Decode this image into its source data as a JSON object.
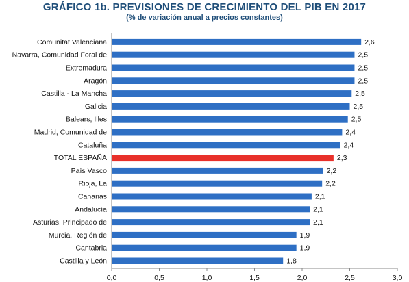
{
  "chart_data": {
    "type": "bar",
    "orientation": "horizontal",
    "title": "GRÁFICO 1b. PREVISIONES DE CRECIMIENTO DEL PIB EN 2017",
    "subtitle": "(% de variación anual a precios constantes)",
    "categories": [
      "Comunitat Valenciana",
      "Navarra, Comunidad Foral de",
      "Extremadura",
      "Aragón",
      "Castilla - La Mancha",
      "Galicia",
      "Balears, Illes",
      "Madrid, Comunidad de",
      "Cataluña",
      "TOTAL ESPAÑA",
      "País Vasco",
      "Rioja, La",
      "Canarias",
      "Andalucía",
      "Asturias, Principado de",
      "Murcia, Región de",
      "Cantabria",
      "Castilla y León"
    ],
    "values": [
      2.62,
      2.55,
      2.55,
      2.55,
      2.52,
      2.5,
      2.48,
      2.42,
      2.4,
      2.33,
      2.22,
      2.21,
      2.1,
      2.08,
      2.08,
      1.94,
      1.94,
      1.8
    ],
    "value_labels": [
      "2,6",
      "2,5",
      "2,5",
      "2,5",
      "2,5",
      "2,5",
      "2,5",
      "2,4",
      "2,4",
      "2,3",
      "2,2",
      "2,2",
      "2,1",
      "2,1",
      "2,1",
      "1,9",
      "1,9",
      "1,8"
    ],
    "highlight": "TOTAL ESPAÑA",
    "xlim": [
      0,
      3
    ],
    "xticks": [
      "0,0",
      "0,5",
      "1,0",
      "1,5",
      "2,0",
      "2,5",
      "3,0"
    ],
    "colors": {
      "bar": "#2e6fc4",
      "highlight": "#e8302a",
      "title": "#1f4e79"
    },
    "grid": false,
    "legend": "none"
  }
}
